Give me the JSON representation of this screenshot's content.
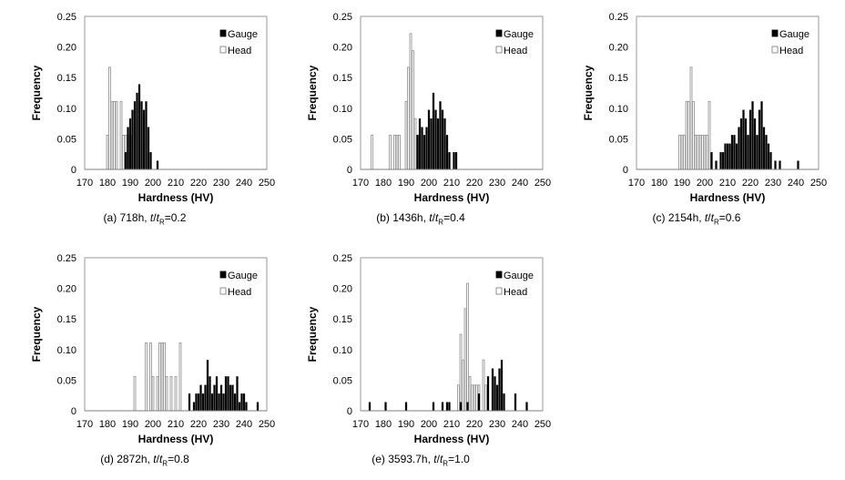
{
  "chart_data": [
    {
      "type": "bar",
      "caption_prefix": "(a) 718h, ",
      "caption_t": "t",
      "caption_sep": "/",
      "caption_sub": "R",
      "caption_value": "=0.2",
      "xlabel": "Hardness (HV)",
      "ylabel": "Frequency",
      "xlim": [
        170,
        250
      ],
      "ylim": [
        0,
        0.25
      ],
      "x_ticks": [
        "170",
        "180",
        "190",
        "200",
        "210",
        "220",
        "230",
        "240",
        "250"
      ],
      "y_ticks": [
        "0",
        "0.05",
        "0.10",
        "0.15",
        "0.20",
        "0.25"
      ],
      "legend": [
        "Gauge",
        "Head"
      ],
      "legend_position": "top-right",
      "series": [
        {
          "name": "Gauge",
          "style": "filled",
          "x": [
            188,
            189,
            190,
            191,
            192,
            193,
            194,
            195,
            196,
            197,
            198,
            199,
            202
          ],
          "values": [
            0.028,
            0.069,
            0.083,
            0.097,
            0.111,
            0.125,
            0.139,
            0.111,
            0.097,
            0.111,
            0.069,
            0.028,
            0.014
          ]
        },
        {
          "name": "Head",
          "style": "open",
          "x": [
            180,
            181,
            182,
            183,
            184,
            186,
            187,
            188,
            190
          ],
          "values": [
            0.056,
            0.167,
            0.111,
            0.111,
            0.111,
            0.111,
            0.056,
            0.056,
            0.056
          ]
        }
      ]
    },
    {
      "type": "bar",
      "caption_prefix": "(b) 1436h, ",
      "caption_t": "t",
      "caption_sep": "/",
      "caption_sub": "R",
      "caption_value": "=0.4",
      "xlabel": "Hardness (HV)",
      "ylabel": "Frequency",
      "xlim": [
        170,
        250
      ],
      "ylim": [
        0,
        0.25
      ],
      "x_ticks": [
        "170",
        "180",
        "190",
        "200",
        "210",
        "220",
        "230",
        "240",
        "250"
      ],
      "y_ticks": [
        "0",
        "0.05",
        "0.10",
        "0.15",
        "0.20",
        "0.25"
      ],
      "legend": [
        "Gauge",
        "Head"
      ],
      "legend_position": "top-right",
      "series": [
        {
          "name": "Gauge",
          "style": "filled",
          "x": [
            195,
            196,
            197,
            198,
            199,
            200,
            201,
            202,
            203,
            204,
            205,
            206,
            207,
            208,
            209,
            211,
            212
          ],
          "values": [
            0.056,
            0.083,
            0.069,
            0.056,
            0.069,
            0.097,
            0.083,
            0.125,
            0.097,
            0.083,
            0.111,
            0.097,
            0.083,
            0.056,
            0.028,
            0.028,
            0.028
          ]
        },
        {
          "name": "Head",
          "style": "open",
          "x": [
            175,
            183,
            185,
            186,
            187,
            190,
            191,
            192,
            193,
            194,
            195
          ],
          "values": [
            0.056,
            0.056,
            0.056,
            0.056,
            0.056,
            0.111,
            0.167,
            0.222,
            0.194,
            0.083,
            0.056
          ]
        }
      ]
    },
    {
      "type": "bar",
      "caption_prefix": "(c) 2154h, ",
      "caption_t": "t",
      "caption_sep": "/",
      "caption_sub": "R",
      "caption_value": "=0.6",
      "xlabel": "Hardness (HV)",
      "ylabel": "Frequency",
      "xlim": [
        170,
        250
      ],
      "ylim": [
        0,
        0.25
      ],
      "x_ticks": [
        "170",
        "180",
        "190",
        "200",
        "210",
        "220",
        "230",
        "240",
        "250"
      ],
      "y_ticks": [
        "0",
        "0.05",
        "0.10",
        "0.15",
        "0.20",
        "0.25"
      ],
      "legend": [
        "Gauge",
        "Head"
      ],
      "legend_position": "top-right",
      "series": [
        {
          "name": "Gauge",
          "style": "filled",
          "x": [
            203,
            205,
            207,
            208,
            209,
            210,
            211,
            212,
            213,
            214,
            215,
            216,
            217,
            218,
            219,
            220,
            221,
            222,
            223,
            224,
            225,
            226,
            227,
            228,
            229,
            231,
            233,
            241
          ],
          "values": [
            0.028,
            0.014,
            0.028,
            0.028,
            0.042,
            0.042,
            0.042,
            0.056,
            0.056,
            0.042,
            0.069,
            0.083,
            0.097,
            0.083,
            0.056,
            0.097,
            0.111,
            0.083,
            0.056,
            0.097,
            0.111,
            0.069,
            0.056,
            0.042,
            0.028,
            0.014,
            0.014,
            0.014
          ]
        },
        {
          "name": "Head",
          "style": "open",
          "x": [
            189,
            190,
            191,
            192,
            193,
            194,
            195,
            196,
            197,
            198,
            199,
            200,
            201,
            202
          ],
          "values": [
            0.056,
            0.056,
            0.056,
            0.111,
            0.111,
            0.167,
            0.111,
            0.056,
            0.056,
            0.056,
            0.056,
            0.056,
            0.056,
            0.111
          ]
        }
      ]
    },
    {
      "type": "bar",
      "caption_prefix": "(d) 2872h, ",
      "caption_t": "t",
      "caption_sep": "/",
      "caption_sub": "R",
      "caption_value": "=0.8",
      "xlabel": "Hardness (HV)",
      "ylabel": "Frequency",
      "xlim": [
        170,
        250
      ],
      "ylim": [
        0,
        0.25
      ],
      "x_ticks": [
        "170",
        "180",
        "190",
        "200",
        "210",
        "220",
        "230",
        "240",
        "250"
      ],
      "y_ticks": [
        "0",
        "0.05",
        "0.10",
        "0.15",
        "0.20",
        "0.25"
      ],
      "legend": [
        "Gauge",
        "Head"
      ],
      "legend_position": "top-right",
      "series": [
        {
          "name": "Gauge",
          "style": "filled",
          "x": [
            216,
            218,
            219,
            220,
            221,
            222,
            223,
            224,
            225,
            226,
            227,
            228,
            229,
            230,
            231,
            232,
            233,
            234,
            235,
            236,
            237,
            238,
            239,
            240,
            241,
            246
          ],
          "values": [
            0.028,
            0.014,
            0.028,
            0.028,
            0.042,
            0.028,
            0.042,
            0.083,
            0.056,
            0.028,
            0.042,
            0.056,
            0.028,
            0.042,
            0.028,
            0.056,
            0.056,
            0.042,
            0.042,
            0.028,
            0.056,
            0.014,
            0.028,
            0.028,
            0.014,
            0.014
          ]
        },
        {
          "name": "Head",
          "style": "open",
          "x": [
            192,
            197,
            199,
            200,
            202,
            203,
            204,
            205,
            206,
            208,
            210,
            212
          ],
          "values": [
            0.056,
            0.111,
            0.111,
            0.056,
            0.056,
            0.111,
            0.111,
            0.111,
            0.056,
            0.056,
            0.056,
            0.111
          ]
        }
      ]
    },
    {
      "type": "bar",
      "caption_prefix": "(e) 3593.7h, ",
      "caption_t": "t",
      "caption_sep": "/",
      "caption_sub": "R",
      "caption_value": "=1.0",
      "xlabel": "Hardness (HV)",
      "ylabel": "Frequency",
      "xlim": [
        170,
        250
      ],
      "ylim": [
        0,
        0.25
      ],
      "x_ticks": [
        "170",
        "180",
        "190",
        "200",
        "210",
        "220",
        "230",
        "240",
        "250"
      ],
      "y_ticks": [
        "0",
        "0.05",
        "0.10",
        "0.15",
        "0.20",
        "0.25"
      ],
      "legend": [
        "Gauge",
        "Head"
      ],
      "legend_position": "top-right",
      "series": [
        {
          "name": "Gauge",
          "style": "filled",
          "x": [
            174,
            181,
            190,
            202,
            206,
            208,
            209,
            214,
            217,
            222,
            226,
            228,
            229,
            230,
            231,
            232,
            233,
            238,
            243
          ],
          "values": [
            0.014,
            0.014,
            0.014,
            0.014,
            0.014,
            0.014,
            0.014,
            0.014,
            0.014,
            0.028,
            0.056,
            0.069,
            0.056,
            0.042,
            0.069,
            0.083,
            0.028,
            0.028,
            0.014
          ]
        },
        {
          "name": "Head",
          "style": "open",
          "x": [
            213,
            214,
            215,
            216,
            217,
            218,
            219,
            220,
            221,
            222,
            224,
            225
          ],
          "values": [
            0.042,
            0.125,
            0.083,
            0.167,
            0.208,
            0.056,
            0.042,
            0.042,
            0.042,
            0.042,
            0.083,
            0.042
          ]
        }
      ]
    }
  ]
}
